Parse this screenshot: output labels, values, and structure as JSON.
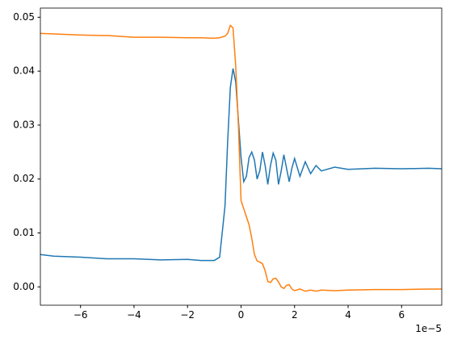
{
  "chart_data": {
    "type": "line",
    "x_offset_label": "1e−5",
    "x": [
      -7.5e-05,
      -7e-05,
      -6e-05,
      -5e-05,
      -4e-05,
      -3e-05,
      -2e-05,
      -1.5e-05,
      -1e-05,
      -8e-06,
      -6e-06,
      -5e-06,
      -4e-06,
      -3e-06,
      -2e-06,
      -1e-06,
      0,
      1e-06,
      2e-06,
      3e-06,
      4e-06,
      5e-06,
      6e-06,
      7e-06,
      8e-06,
      9e-06,
      1e-05,
      1.1e-05,
      1.2e-05,
      1.3e-05,
      1.4e-05,
      1.5e-05,
      1.6e-05,
      1.7e-05,
      1.8e-05,
      1.9e-05,
      2e-05,
      2.2e-05,
      2.4e-05,
      2.6e-05,
      2.8e-05,
      3e-05,
      3.5e-05,
      4e-05,
      5e-05,
      6e-05,
      7e-05,
      7.5e-05
    ],
    "series": [
      {
        "color": "#1f77b4",
        "values": [
          0.006,
          0.0057,
          0.0055,
          0.0052,
          0.0052,
          0.005,
          0.0051,
          0.0049,
          0.0049,
          0.0055,
          0.015,
          0.027,
          0.037,
          0.0405,
          0.038,
          0.031,
          0.024,
          0.0195,
          0.0205,
          0.024,
          0.025,
          0.0235,
          0.02,
          0.0215,
          0.025,
          0.0225,
          0.019,
          0.0225,
          0.0248,
          0.0235,
          0.019,
          0.0215,
          0.0245,
          0.022,
          0.0195,
          0.022,
          0.0238,
          0.0205,
          0.0232,
          0.021,
          0.0225,
          0.0215,
          0.0222,
          0.0218,
          0.022,
          0.0219,
          0.022,
          0.0219
        ]
      },
      {
        "color": "#ff7f0e",
        "values": [
          0.047,
          0.0469,
          0.0467,
          0.0466,
          0.0463,
          0.0463,
          0.0462,
          0.0462,
          0.0461,
          0.0462,
          0.0465,
          0.047,
          0.0485,
          0.048,
          0.041,
          0.03,
          0.016,
          0.0145,
          0.013,
          0.0115,
          0.009,
          0.006,
          0.0048,
          0.0046,
          0.0043,
          0.003,
          0.001,
          0.0008,
          0.0015,
          0.0016,
          0.0009,
          0.0,
          -0.0003,
          0.0003,
          0.0004,
          -0.0004,
          -0.0007,
          -0.0004,
          -0.0008,
          -0.0006,
          -0.0008,
          -0.0006,
          -0.0007,
          -0.0006,
          -0.0005,
          -0.0005,
          -0.0004,
          -0.0004
        ]
      }
    ],
    "xlim": [
      -7.5e-05,
      7.5e-05
    ],
    "xticks": [
      {
        "value": -6e-05,
        "label": "−6"
      },
      {
        "value": -4e-05,
        "label": "−4"
      },
      {
        "value": -2e-05,
        "label": "−2"
      },
      0,
      {
        "value": 2e-05,
        "label": "2"
      },
      {
        "value": 4e-05,
        "label": "4"
      },
      {
        "value": 6e-05,
        "label": "6"
      }
    ],
    "ylim": [
      -0.0034,
      0.0517
    ],
    "yticks": [
      {
        "value": 0,
        "label": "0.00"
      },
      {
        "value": 0.01,
        "label": "0.01"
      },
      {
        "value": 0.02,
        "label": "0.02"
      },
      {
        "value": 0.03,
        "label": "0.03"
      },
      {
        "value": 0.04,
        "label": "0.04"
      },
      {
        "value": 0.05,
        "label": "0.05"
      }
    ],
    "grid": false
  }
}
